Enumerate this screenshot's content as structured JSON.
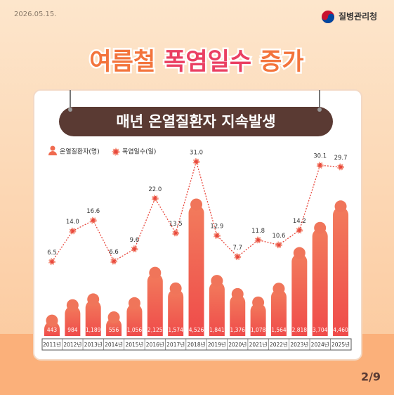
{
  "header": {
    "date": "2026.05.15.",
    "agency": "질병관리청"
  },
  "chart_data": {
    "type": "bar-line",
    "title": [
      "여름철",
      "폭염일수",
      "증가"
    ],
    "subtitle": "매년 온열질환자 지속발생",
    "categories": [
      "2011년",
      "2012년",
      "2013년",
      "2014년",
      "2015년",
      "2016년",
      "2017년",
      "2018년",
      "2019년",
      "2020년",
      "2021년",
      "2022년",
      "2023년",
      "2024년",
      "2025년"
    ],
    "series": [
      {
        "name": "온열질환자(명)",
        "type": "bar",
        "color": "#ef5a4c",
        "values": [
          443,
          984,
          1189,
          556,
          1056,
          2125,
          1574,
          4526,
          1841,
          1376,
          1078,
          1564,
          2818,
          3704,
          4460
        ],
        "value_labels": [
          "443",
          "984",
          "1,189",
          "556",
          "1,056",
          "2,125",
          "1,574",
          "4,526",
          "1,841",
          "1,376",
          "1,078",
          "1,564",
          "2,818",
          "3,704",
          "4,460"
        ]
      },
      {
        "name": "폭염일수(일)",
        "type": "line",
        "color": "#e8473c",
        "values": [
          6.5,
          14.0,
          16.6,
          6.6,
          9.6,
          22.0,
          13.5,
          31.0,
          12.9,
          7.7,
          11.8,
          10.6,
          14.2,
          30.1,
          29.7
        ],
        "value_labels": [
          "6.5",
          "14.0",
          "16.6",
          "6.6",
          "9.6",
          "22.0",
          "13.5",
          "31.0",
          "12.9",
          "7.7",
          "11.8",
          "10.6",
          "14.2",
          "30.1",
          "29.7"
        ]
      }
    ]
  },
  "footer": {
    "page": "2/9"
  }
}
